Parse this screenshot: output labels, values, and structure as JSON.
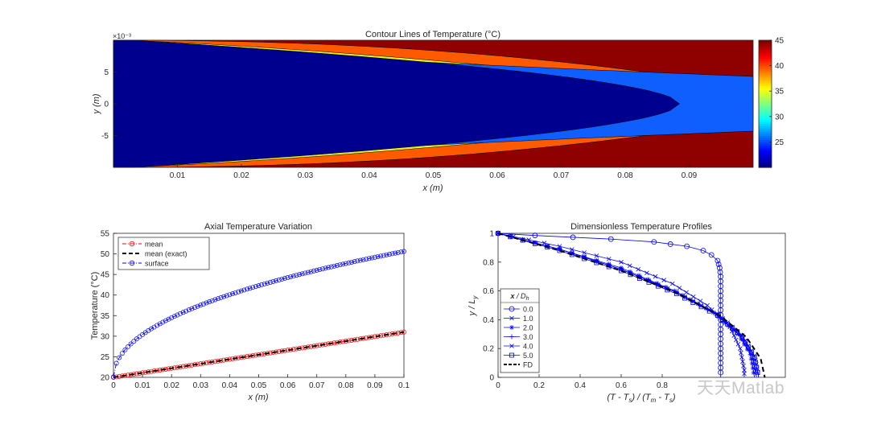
{
  "chart_data": [
    {
      "type": "contour",
      "title": "Contour Lines of Temperature (°C)",
      "xlabel": "x (m)",
      "ylabel": "y (m)",
      "xlim": [
        0,
        0.1
      ],
      "ylim": [
        -0.01,
        0.01
      ],
      "x_ticks": [
        "0.01",
        "0.02",
        "0.03",
        "0.04",
        "0.05",
        "0.06",
        "0.07",
        "0.08",
        "0.09"
      ],
      "y_ticks": [
        "5",
        "0",
        "-5"
      ],
      "y_exponent": "×10⁻³",
      "colorbar_ticks": [
        "45",
        "40",
        "35",
        "30",
        "25"
      ],
      "colorbar_range": [
        20,
        45
      ],
      "colormap": "jet",
      "levels": [
        25,
        30,
        35,
        40,
        45
      ],
      "level_colors": [
        "#00008f",
        "#0f5fff",
        "#20ffdf",
        "#e8f02a",
        "#ff5a00",
        "#8f0000"
      ]
    },
    {
      "type": "line",
      "title": "Axial Temperature Variation",
      "xlabel": "x (m)",
      "ylabel": "Temperature (°C)",
      "xlim": [
        0,
        0.1
      ],
      "ylim": [
        20,
        55
      ],
      "x_ticks": [
        "0",
        "0.01",
        "0.02",
        "0.03",
        "0.04",
        "0.05",
        "0.06",
        "0.07",
        "0.08",
        "0.09",
        "0.1"
      ],
      "y_ticks": [
        "20",
        "25",
        "30",
        "35",
        "40",
        "45",
        "50",
        "55"
      ],
      "legend_position": "top-left",
      "series": [
        {
          "name": "mean",
          "color": "#ff0000",
          "marker": "circle",
          "style": "dash-dot",
          "x": [
            0,
            0.1
          ],
          "y": [
            20,
            31
          ]
        },
        {
          "name": "mean (exact)",
          "color": "#000000",
          "marker": "none",
          "style": "dashed",
          "x": [
            0,
            0.1
          ],
          "y": [
            20,
            31
          ]
        },
        {
          "name": "surface",
          "color": "#0000ff",
          "marker": "circle",
          "style": "dash-dot",
          "x": [
            0,
            0.0005,
            0.002,
            0.005,
            0.01,
            0.02,
            0.03,
            0.04,
            0.05,
            0.06,
            0.07,
            0.08,
            0.09,
            0.1
          ],
          "y": [
            20,
            21.8,
            23.9,
            26.4,
            29.6,
            34.5,
            38.2,
            41.3,
            43.8,
            45.9,
            47.6,
            48.9,
            49.8,
            50.4
          ]
        }
      ]
    },
    {
      "type": "line",
      "title": "Dimensionless Temperature Profiles",
      "xlabel": "(T - Ts) / (Tm - Ts)",
      "ylabel": "y / Ly",
      "xlim": [
        0,
        1.4
      ],
      "ylim": [
        0,
        1
      ],
      "x_ticks": [
        "0",
        "0.2",
        "0.4",
        "0.6",
        "0.8"
      ],
      "y_ticks": [
        "0",
        "0.2",
        "0.4",
        "0.6",
        "0.8",
        "1"
      ],
      "legend_title": "x / Dh",
      "legend_position": "middle-left",
      "series": [
        {
          "name": "0.0",
          "color": "#0000ff",
          "marker": "circle",
          "points": [
            [
              0.0,
              1.0
            ],
            [
              0.18,
              0.985
            ],
            [
              0.55,
              0.96
            ],
            [
              0.76,
              0.94
            ],
            [
              0.92,
              0.91
            ],
            [
              1.0,
              0.88
            ],
            [
              1.04,
              0.85
            ],
            [
              1.07,
              0.81
            ],
            [
              1.08,
              0.76
            ],
            [
              1.085,
              0.7
            ],
            [
              1.085,
              0.0
            ]
          ]
        },
        {
          "name": "1.0",
          "color": "#0000ff",
          "marker": "x",
          "points": [
            [
              0.0,
              1.0
            ],
            [
              0.3,
              0.91
            ],
            [
              0.6,
              0.8
            ],
            [
              0.85,
              0.65
            ],
            [
              1.02,
              0.5
            ],
            [
              1.13,
              0.35
            ],
            [
              1.18,
              0.2
            ],
            [
              1.2,
              0.05
            ],
            [
              1.2,
              0.0
            ]
          ]
        },
        {
          "name": "2.0",
          "color": "#0000ff",
          "marker": "asterisk",
          "points": [
            [
              0.0,
              1.0
            ],
            [
              0.3,
              0.89
            ],
            [
              0.6,
              0.76
            ],
            [
              0.86,
              0.6
            ],
            [
              1.05,
              0.45
            ],
            [
              1.17,
              0.3
            ],
            [
              1.23,
              0.16
            ],
            [
              1.25,
              0.0
            ]
          ]
        },
        {
          "name": "3.0",
          "color": "#0000ff",
          "marker": "plus",
          "points": [
            [
              0.0,
              1.0
            ],
            [
              0.3,
              0.89
            ],
            [
              0.6,
              0.75
            ],
            [
              0.87,
              0.59
            ],
            [
              1.06,
              0.44
            ],
            [
              1.18,
              0.29
            ],
            [
              1.24,
              0.15
            ],
            [
              1.26,
              0.0
            ]
          ]
        },
        {
          "name": "4.0",
          "color": "#0000ff",
          "marker": "x",
          "points": [
            [
              0.0,
              1.0
            ],
            [
              0.3,
              0.89
            ],
            [
              0.6,
              0.75
            ],
            [
              0.87,
              0.59
            ],
            [
              1.07,
              0.44
            ],
            [
              1.19,
              0.29
            ],
            [
              1.25,
              0.15
            ],
            [
              1.27,
              0.0
            ]
          ]
        },
        {
          "name": "5.0",
          "color": "#0000ff",
          "marker": "square",
          "points": [
            [
              0.0,
              1.0
            ],
            [
              0.3,
              0.88
            ],
            [
              0.6,
              0.74
            ],
            [
              0.87,
              0.58
            ],
            [
              1.07,
              0.43
            ],
            [
              1.19,
              0.28
            ],
            [
              1.25,
              0.14
            ],
            [
              1.27,
              0.0
            ]
          ]
        },
        {
          "name": "FD",
          "color": "#000000",
          "marker": "none",
          "style": "dashed",
          "points": [
            [
              0.0,
              1.0
            ],
            [
              0.3,
              0.88
            ],
            [
              0.6,
              0.74
            ],
            [
              0.88,
              0.58
            ],
            [
              1.08,
              0.43
            ],
            [
              1.21,
              0.28
            ],
            [
              1.28,
              0.13
            ],
            [
              1.3,
              0.0
            ]
          ]
        }
      ]
    }
  ],
  "watermark": "天天Matlab"
}
